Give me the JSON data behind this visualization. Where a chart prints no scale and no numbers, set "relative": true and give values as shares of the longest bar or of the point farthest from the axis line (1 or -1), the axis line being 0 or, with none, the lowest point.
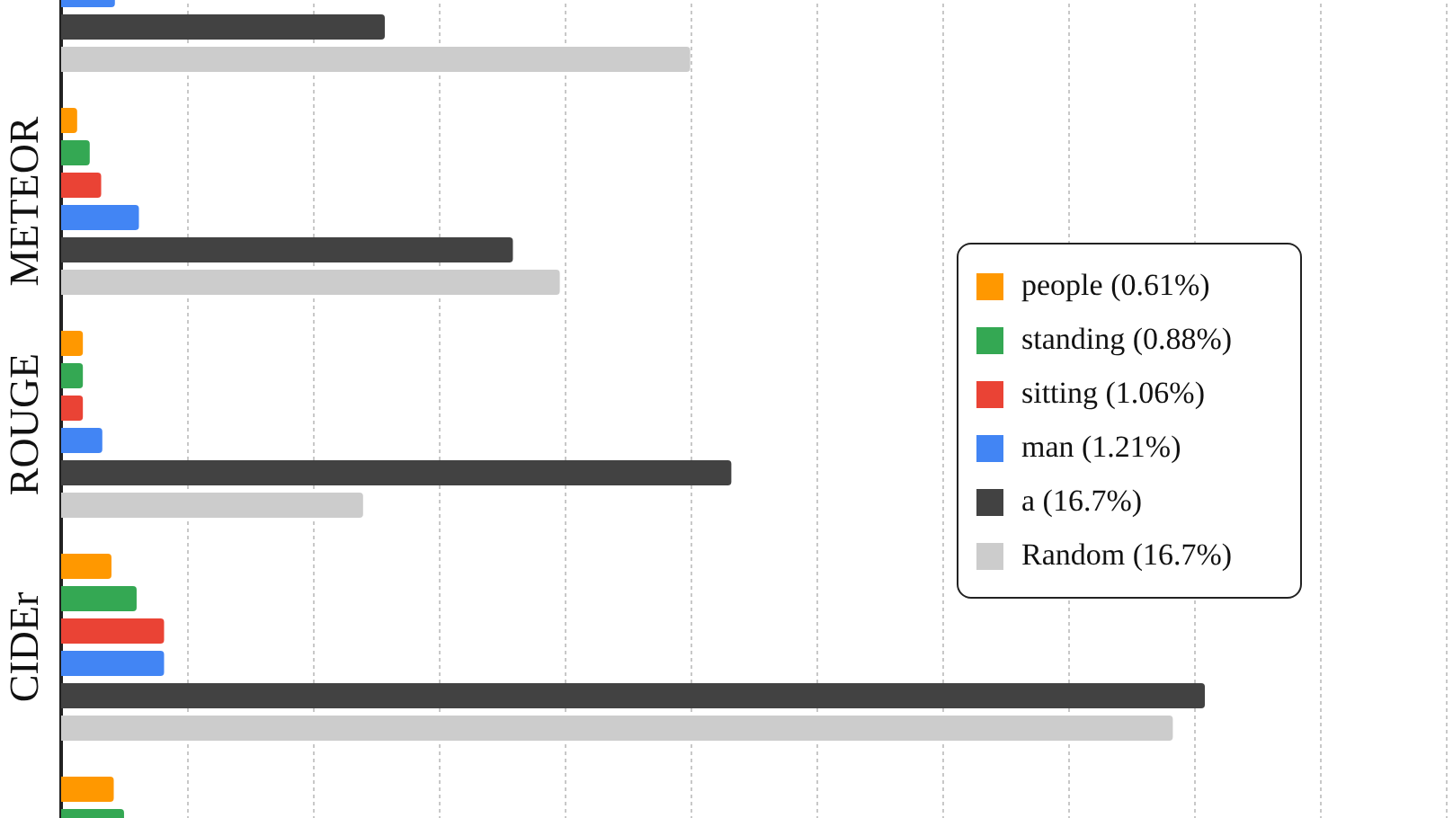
{
  "chart_data": {
    "type": "bar",
    "orientation": "horizontal",
    "relative": true,
    "legend": "right",
    "grid": "x",
    "categories": [
      null,
      "METEOR",
      "ROUGE",
      "CIDEr",
      null
    ],
    "series": [
      {
        "name": "people (0.61%)",
        "color": "#ff9800",
        "values": [
          null,
          0.014,
          0.019,
          0.044,
          0.046
        ]
      },
      {
        "name": "standing (0.88%)",
        "color": "#34a853",
        "values": [
          null,
          0.025,
          0.019,
          0.066,
          0.055
        ]
      },
      {
        "name": "sitting (1.06%)",
        "color": "#ea4335",
        "values": [
          null,
          0.035,
          0.019,
          0.09,
          null
        ]
      },
      {
        "name": "man (1.21%)",
        "color": "#4285f4",
        "values": [
          0.047,
          0.068,
          0.036,
          0.09,
          null
        ]
      },
      {
        "name": "a (16.7%)",
        "color": "#424242",
        "values": [
          0.283,
          0.395,
          0.586,
          1,
          null
        ]
      },
      {
        "name": "Random (16.7%)",
        "color": "#cccccc",
        "values": [
          0.55,
          0.436,
          0.264,
          0.972,
          null
        ]
      }
    ]
  }
}
